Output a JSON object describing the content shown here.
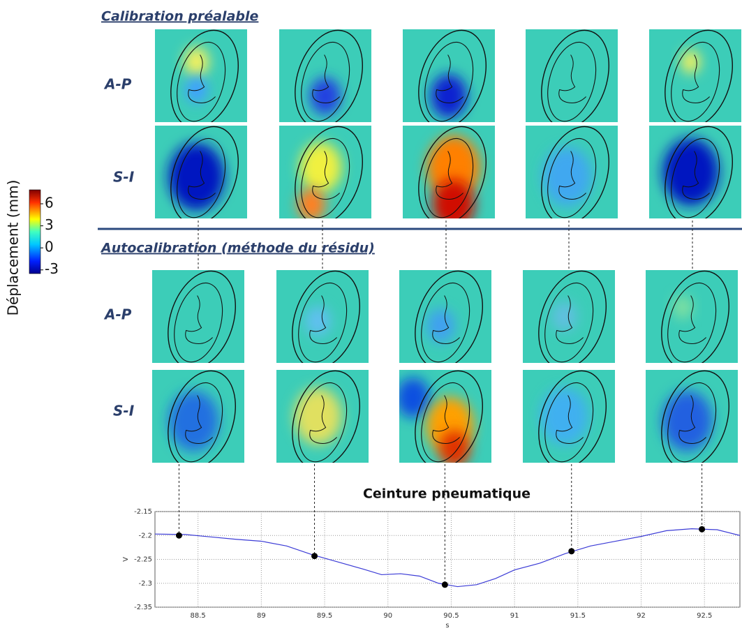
{
  "colorbar": {
    "label": "Déplacement (mm)",
    "ticks": [
      6,
      3,
      0,
      -3
    ],
    "clim": [
      -3.5,
      7.9
    ]
  },
  "sections": [
    {
      "title": "Calibration préalable",
      "rows": [
        "A-P",
        "S-I"
      ]
    },
    {
      "title": "Autocalibration (méthode du résidu)",
      "rows": [
        "A-P",
        "S-I"
      ]
    }
  ],
  "chart_data": {
    "type": "line",
    "title": "Ceinture pneumatique",
    "xlabel": "s",
    "ylabel": "V",
    "xlim": [
      88.16,
      92.78
    ],
    "ylim": [
      -2.35,
      -2.15
    ],
    "xticks": [
      88.5,
      89,
      89.5,
      90,
      90.5,
      91,
      91.5,
      92,
      92.5
    ],
    "yticks": [
      -2.15,
      -2.2,
      -2.25,
      -2.3,
      -2.35
    ],
    "grid": true,
    "series": [
      {
        "color": "#3b3bd6",
        "x": [
          88.16,
          88.4,
          88.6,
          88.8,
          89.0,
          89.2,
          89.4,
          89.6,
          89.8,
          89.95,
          90.1,
          90.25,
          90.4,
          90.55,
          90.7,
          90.85,
          91.0,
          91.2,
          91.4,
          91.6,
          91.8,
          92.0,
          92.2,
          92.4,
          92.6,
          92.78
        ],
        "values": [
          -2.197,
          -2.198,
          -2.203,
          -2.208,
          -2.212,
          -2.222,
          -2.24,
          -2.255,
          -2.27,
          -2.282,
          -2.28,
          -2.285,
          -2.3,
          -2.307,
          -2.303,
          -2.29,
          -2.272,
          -2.258,
          -2.238,
          -2.222,
          -2.212,
          -2.202,
          -2.19,
          -2.186,
          -2.188,
          -2.2
        ]
      },
      {
        "color": "#000000",
        "x": [
          88.35,
          89.42,
          90.45,
          91.45,
          92.48
        ],
        "values": [
          -2.2,
          -2.243,
          -2.303,
          -2.233,
          -2.187
        ]
      }
    ]
  }
}
